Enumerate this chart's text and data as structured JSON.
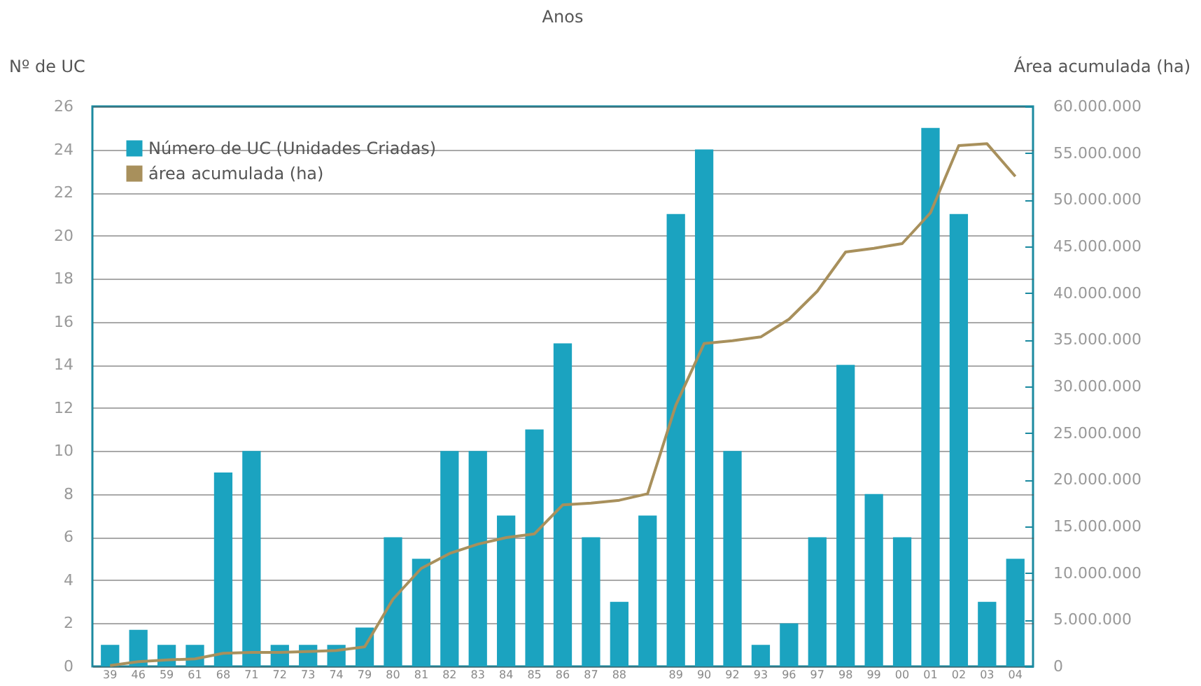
{
  "chart_data": {
    "type": "bar",
    "xlabel": "Anos",
    "ylabel": "Nº de UC",
    "y2label": "Área acumulada (ha)",
    "categories": [
      "39",
      "46",
      "59",
      "61",
      "68",
      "71",
      "72",
      "73",
      "74",
      "79",
      "80",
      "81",
      "82",
      "83",
      "84",
      "85",
      "86",
      "87",
      "88",
      null,
      "89",
      "90",
      "92",
      "93",
      "96",
      "97",
      "98",
      "99",
      "00",
      "01",
      "02",
      "03",
      "04"
    ],
    "series": [
      {
        "name": "Número de UC (Unidades Criadas)",
        "color": "#1ba3c0",
        "values": [
          1,
          1.7,
          1,
          1,
          9,
          10,
          1,
          1,
          1,
          1.8,
          6,
          5,
          10,
          10,
          7,
          11,
          15,
          6,
          3,
          7,
          21,
          24,
          10,
          1,
          2,
          6,
          14,
          8,
          6,
          25,
          21,
          3,
          5
        ]
      },
      {
        "name": "área acumulada (ha)",
        "type": "line",
        "axis": "y2",
        "color": "#a8905c",
        "values": [
          100000,
          500000,
          700000,
          800000,
          1400000,
          1500000,
          1500000,
          1600000,
          1700000,
          2100000,
          7200000,
          10500000,
          12100000,
          13100000,
          13800000,
          14200000,
          17300000,
          17500000,
          17800000,
          18500000,
          28000000,
          34600000,
          34900000,
          35300000,
          37200000,
          40200000,
          44400000,
          44800000,
          45300000,
          48600000,
          55800000,
          56000000,
          52500000
        ]
      }
    ],
    "ylim": [
      0,
      26
    ],
    "yticks": [
      0,
      2,
      4,
      6,
      8,
      10,
      12,
      14,
      16,
      18,
      20,
      22,
      24,
      26
    ],
    "y2lim": [
      0,
      60000000
    ],
    "y2ticks": [
      {
        "value": 0,
        "label": "0"
      },
      {
        "value": 5000000,
        "label": "5.000.000"
      },
      {
        "value": 10000000,
        "label": "10.000.000"
      },
      {
        "value": 15000000,
        "label": "15.000.000"
      },
      {
        "value": 20000000,
        "label": "20.000.000"
      },
      {
        "value": 25000000,
        "label": "25.000.000"
      },
      {
        "value": 30000000,
        "label": "30.000.000"
      },
      {
        "value": 35000000,
        "label": "35.000.000"
      },
      {
        "value": 40000000,
        "label": "40.000.000"
      },
      {
        "value": 45000000,
        "label": "45.000.000"
      },
      {
        "value": 50000000,
        "label": "50.000.000"
      },
      {
        "value": 55000000,
        "label": "55.000.000"
      },
      {
        "value": 60000000,
        "label": "60.000.000"
      }
    ],
    "grid": "y",
    "legend": "top left"
  }
}
